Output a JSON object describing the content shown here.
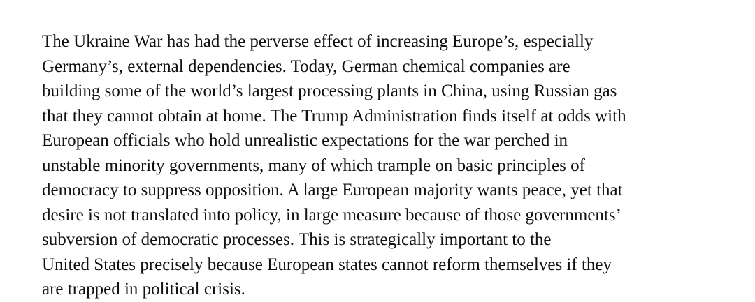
{
  "paragraph": {
    "lines": [
      "The Ukraine War has had the perverse effect of increasing Europe’s, especially",
      "Germany’s, external dependencies. Today, German chemical companies are",
      "building some of the world’s largest processing plants in China, using Russian gas",
      "that they cannot obtain at home. The Trump Administration finds itself at odds with",
      "European officials who hold unrealistic expectations for the war perched in",
      "unstable minority governments, many of which trample on basic principles of",
      "democracy to suppress opposition. A large European majority wants peace, yet that",
      "desire is not translated into policy, in large measure because of those governments’",
      "subversion of democratic processes. This is strategically important to the",
      "United States precisely because European states cannot reform themselves if they",
      "are trapped in political crisis."
    ]
  }
}
